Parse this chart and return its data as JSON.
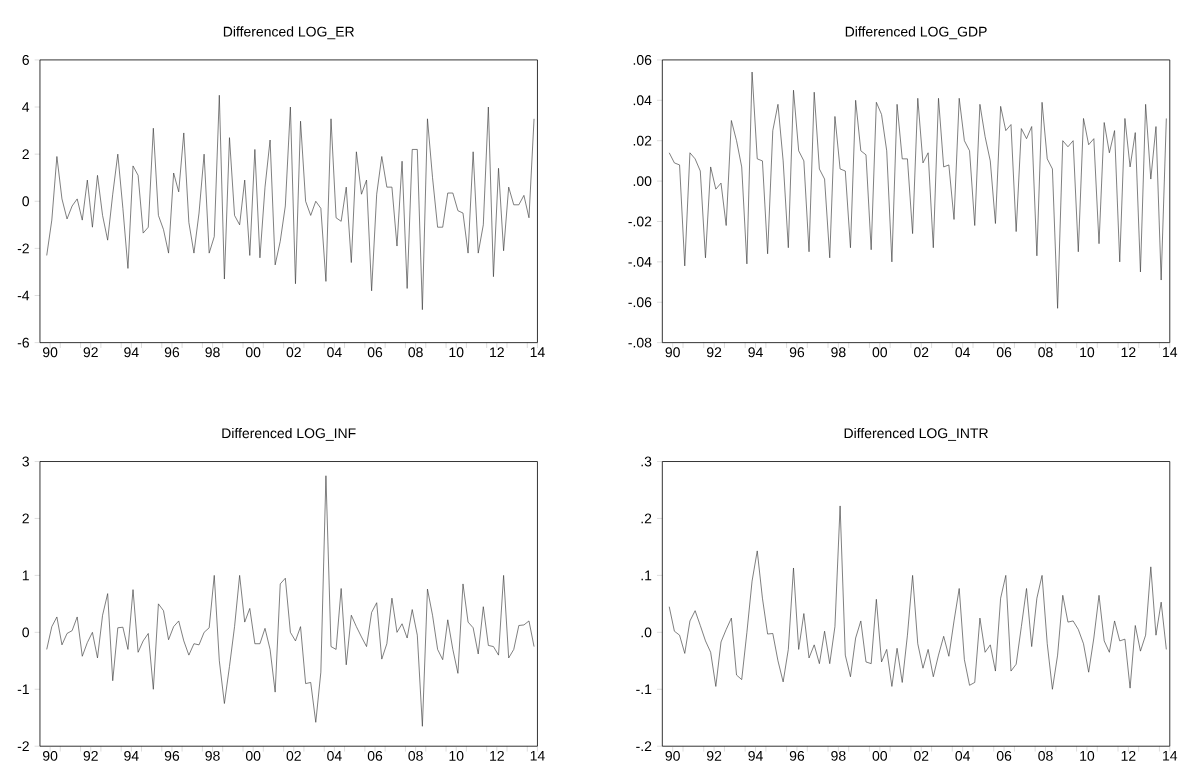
{
  "chart_data": [
    {
      "type": "line",
      "title": "Differenced LOG_ER",
      "color": "#404040",
      "xlim": [
        "1990-01",
        "2014-07"
      ],
      "ylim": [
        -6,
        6
      ],
      "yticks": [
        -6,
        -4,
        -2,
        0,
        2,
        4,
        6
      ],
      "xticks": [
        {
          "value": "1990-07",
          "label": "90"
        },
        {
          "value": "1992-07",
          "label": "92"
        },
        {
          "value": "1994-07",
          "label": "94"
        },
        {
          "value": "1996-07",
          "label": "96"
        },
        {
          "value": "1998-07",
          "label": "98"
        },
        {
          "value": "2000-07",
          "label": "00"
        },
        {
          "value": "2002-07",
          "label": "02"
        },
        {
          "value": "2004-07",
          "label": "04"
        },
        {
          "value": "2006-07",
          "label": "06"
        },
        {
          "value": "2008-07",
          "label": "08"
        },
        {
          "value": "2010-07",
          "label": "10"
        },
        {
          "value": "2012-07",
          "label": "12"
        },
        {
          "value": "2014-07",
          "label": "14"
        },
        {
          "value": "1991-01",
          "label": null
        },
        {
          "value": "1992-01",
          "label": null
        },
        {
          "value": "1993-01",
          "label": null
        },
        {
          "value": "1994-01",
          "label": null
        },
        {
          "value": "1995-01",
          "label": null
        },
        {
          "value": "1996-01",
          "label": null
        },
        {
          "value": "1997-01",
          "label": null
        },
        {
          "value": "1998-01",
          "label": null
        },
        {
          "value": "1999-01",
          "label": null
        },
        {
          "value": "2000-01",
          "label": null
        },
        {
          "value": "2001-01",
          "label": null
        },
        {
          "value": "2002-01",
          "label": null
        },
        {
          "value": "2003-01",
          "label": null
        },
        {
          "value": "2004-01",
          "label": null
        },
        {
          "value": "2005-01",
          "label": null
        },
        {
          "value": "2006-01",
          "label": null
        },
        {
          "value": "2007-01",
          "label": null
        },
        {
          "value": "2008-01",
          "label": null
        },
        {
          "value": "2009-01",
          "label": null
        },
        {
          "value": "2010-01",
          "label": null
        },
        {
          "value": "2011-01",
          "label": null
        },
        {
          "value": "2012-01",
          "label": null
        },
        {
          "value": "2013-01",
          "label": null
        },
        {
          "value": "2014-01",
          "label": null
        }
      ],
      "x": [
        "1990-05",
        "1990-08",
        "1990-11",
        "1991-02",
        "1991-05",
        "1991-08",
        "1991-11",
        "1992-02",
        "1992-05",
        "1992-08",
        "1992-11",
        "1993-02",
        "1993-05",
        "1993-08",
        "1993-11",
        "1994-02",
        "1994-05",
        "1994-08",
        "1994-11",
        "1995-02",
        "1995-05",
        "1995-08",
        "1995-11",
        "1996-02",
        "1996-05",
        "1996-08",
        "1996-11",
        "1997-02",
        "1997-05",
        "1997-08",
        "1997-11",
        "1998-02",
        "1998-05",
        "1998-08",
        "1998-11",
        "1999-02",
        "1999-05",
        "1999-08",
        "1999-11",
        "2000-02",
        "2000-05",
        "2000-08",
        "2000-11",
        "2001-02",
        "2001-05",
        "2001-08",
        "2001-11",
        "2002-02",
        "2002-05",
        "2002-08",
        "2002-11",
        "2003-02",
        "2003-05",
        "2003-08",
        "2003-11",
        "2004-02",
        "2004-05",
        "2004-08",
        "2004-11",
        "2005-02",
        "2005-05",
        "2005-08",
        "2005-11",
        "2006-02",
        "2006-05",
        "2006-08",
        "2006-11",
        "2007-02",
        "2007-05",
        "2007-08",
        "2007-11",
        "2008-02",
        "2008-05",
        "2008-08",
        "2008-11",
        "2009-02",
        "2009-05",
        "2009-08",
        "2009-11",
        "2010-02",
        "2010-05",
        "2010-08",
        "2010-11",
        "2011-02",
        "2011-05",
        "2011-08",
        "2011-11",
        "2012-02",
        "2012-05",
        "2012-08",
        "2012-11",
        "2013-02",
        "2013-05",
        "2013-08",
        "2013-11",
        "2014-02",
        "2014-05"
      ],
      "values": [
        -2.3,
        -0.8,
        1.9,
        0.1,
        -0.75,
        -0.2,
        0.1,
        -0.8,
        0.9,
        -1.1,
        1.1,
        -0.6,
        -1.65,
        0.3,
        2.0,
        -0.3,
        -2.85,
        1.5,
        1.1,
        -1.35,
        -1.1,
        3.1,
        -0.6,
        -1.2,
        -2.2,
        1.2,
        0.4,
        2.9,
        -0.9,
        -2.2,
        -0.5,
        2.0,
        -2.2,
        -1.5,
        4.5,
        -3.3,
        2.7,
        -0.6,
        -1.0,
        0.9,
        -2.3,
        2.2,
        -2.4,
        0.6,
        2.6,
        -2.7,
        -1.7,
        -0.2,
        4.0,
        -3.5,
        3.4,
        0.0,
        -0.6,
        0.0,
        -0.3,
        -3.4,
        3.5,
        -0.7,
        -0.85,
        0.6,
        -2.6,
        2.1,
        0.3,
        0.9,
        -3.8,
        0.3,
        1.9,
        0.6,
        0.6,
        -1.9,
        1.7,
        -3.7,
        2.2,
        2.2,
        -4.6,
        3.5,
        1.0,
        -1.1,
        -1.1,
        0.35,
        0.35,
        -0.4,
        -0.5,
        -2.2,
        2.1,
        -2.2,
        -1.0,
        4.0,
        -3.2,
        1.4,
        -2.1,
        0.6,
        -0.15,
        -0.15,
        0.25,
        -0.7,
        3.5
      ]
    },
    {
      "type": "line",
      "title": "Differenced LOG_GDP",
      "color": "#404040",
      "xlim": [
        "1990-01",
        "2014-07"
      ],
      "ylim": [
        -0.08,
        0.06
      ],
      "yticks": [
        {
          "value": -0.08,
          "label": "-.08"
        },
        {
          "value": -0.06,
          "label": "-.06"
        },
        {
          "value": -0.04,
          "label": "-.04"
        },
        {
          "value": -0.02,
          "label": "-.02"
        },
        {
          "value": 0,
          "label": ".00"
        },
        {
          "value": 0.02,
          "label": ".02"
        },
        {
          "value": 0.04,
          "label": ".04"
        },
        {
          "value": 0.06,
          "label": ".06"
        }
      ],
      "xticks": [
        {
          "value": "1990-07",
          "label": "90"
        },
        {
          "value": "1992-07",
          "label": "92"
        },
        {
          "value": "1994-07",
          "label": "94"
        },
        {
          "value": "1996-07",
          "label": "96"
        },
        {
          "value": "1998-07",
          "label": "98"
        },
        {
          "value": "2000-07",
          "label": "00"
        },
        {
          "value": "2002-07",
          "label": "02"
        },
        {
          "value": "2004-07",
          "label": "04"
        },
        {
          "value": "2006-07",
          "label": "06"
        },
        {
          "value": "2008-07",
          "label": "08"
        },
        {
          "value": "2010-07",
          "label": "10"
        },
        {
          "value": "2012-07",
          "label": "12"
        },
        {
          "value": "2014-07",
          "label": "14"
        },
        {
          "value": "1991-01",
          "label": null
        },
        {
          "value": "1992-01",
          "label": null
        },
        {
          "value": "1993-01",
          "label": null
        },
        {
          "value": "1994-01",
          "label": null
        },
        {
          "value": "1995-01",
          "label": null
        },
        {
          "value": "1996-01",
          "label": null
        },
        {
          "value": "1997-01",
          "label": null
        },
        {
          "value": "1998-01",
          "label": null
        },
        {
          "value": "1999-01",
          "label": null
        },
        {
          "value": "2000-01",
          "label": null
        },
        {
          "value": "2001-01",
          "label": null
        },
        {
          "value": "2002-01",
          "label": null
        },
        {
          "value": "2003-01",
          "label": null
        },
        {
          "value": "2004-01",
          "label": null
        },
        {
          "value": "2005-01",
          "label": null
        },
        {
          "value": "2006-01",
          "label": null
        },
        {
          "value": "2007-01",
          "label": null
        },
        {
          "value": "2008-01",
          "label": null
        },
        {
          "value": "2009-01",
          "label": null
        },
        {
          "value": "2010-01",
          "label": null
        },
        {
          "value": "2011-01",
          "label": null
        },
        {
          "value": "2012-01",
          "label": null
        },
        {
          "value": "2013-01",
          "label": null
        },
        {
          "value": "2014-01",
          "label": null
        }
      ],
      "x": [
        "1990-05",
        "1990-08",
        "1990-11",
        "1991-02",
        "1991-05",
        "1991-08",
        "1991-11",
        "1992-02",
        "1992-05",
        "1992-08",
        "1992-11",
        "1993-02",
        "1993-05",
        "1993-08",
        "1993-11",
        "1994-02",
        "1994-05",
        "1994-08",
        "1994-11",
        "1995-02",
        "1995-05",
        "1995-08",
        "1995-11",
        "1996-02",
        "1996-05",
        "1996-08",
        "1996-11",
        "1997-02",
        "1997-05",
        "1997-08",
        "1997-11",
        "1998-02",
        "1998-05",
        "1998-08",
        "1998-11",
        "1999-02",
        "1999-05",
        "1999-08",
        "1999-11",
        "2000-02",
        "2000-05",
        "2000-08",
        "2000-11",
        "2001-02",
        "2001-05",
        "2001-08",
        "2001-11",
        "2002-02",
        "2002-05",
        "2002-08",
        "2002-11",
        "2003-02",
        "2003-05",
        "2003-08",
        "2003-11",
        "2004-02",
        "2004-05",
        "2004-08",
        "2004-11",
        "2005-02",
        "2005-05",
        "2005-08",
        "2005-11",
        "2006-02",
        "2006-05",
        "2006-08",
        "2006-11",
        "2007-02",
        "2007-05",
        "2007-08",
        "2007-11",
        "2008-02",
        "2008-05",
        "2008-08",
        "2008-11",
        "2009-02",
        "2009-05",
        "2009-08",
        "2009-11",
        "2010-02",
        "2010-05",
        "2010-08",
        "2010-11",
        "2011-02",
        "2011-05",
        "2011-08",
        "2011-11",
        "2012-02",
        "2012-05",
        "2012-08",
        "2012-11",
        "2013-02",
        "2013-05",
        "2013-08",
        "2013-11",
        "2014-02",
        "2014-05"
      ],
      "values": [
        0.014,
        0.009,
        0.008,
        -0.042,
        0.014,
        0.011,
        0.005,
        -0.038,
        0.007,
        -0.004,
        -0.001,
        -0.022,
        0.03,
        0.02,
        0.007,
        -0.041,
        0.054,
        0.011,
        0.01,
        -0.036,
        0.025,
        0.038,
        0.01,
        -0.033,
        0.045,
        0.015,
        0.01,
        -0.035,
        0.044,
        0.006,
        0.001,
        -0.038,
        0.032,
        0.006,
        0.005,
        -0.033,
        0.04,
        0.015,
        0.013,
        -0.034,
        0.039,
        0.033,
        0.015,
        -0.04,
        0.038,
        0.011,
        0.011,
        -0.026,
        0.041,
        0.009,
        0.014,
        -0.033,
        0.041,
        0.007,
        0.008,
        -0.019,
        0.041,
        0.02,
        0.015,
        -0.022,
        0.038,
        0.022,
        0.01,
        -0.021,
        0.037,
        0.025,
        0.028,
        -0.025,
        0.026,
        0.021,
        0.027,
        -0.037,
        0.039,
        0.011,
        0.006,
        -0.063,
        0.02,
        0.017,
        0.02,
        -0.035,
        0.031,
        0.018,
        0.021,
        -0.031,
        0.029,
        0.014,
        0.025,
        -0.04,
        0.031,
        0.007,
        0.024,
        -0.045,
        0.038,
        0.001,
        0.027,
        -0.049,
        0.031
      ]
    },
    {
      "type": "line",
      "title": "Differenced LOG_INF",
      "color": "#404040",
      "xlim": [
        "1990-01",
        "2014-07"
      ],
      "ylim": [
        -2,
        3
      ],
      "yticks": [
        -2,
        -1,
        0,
        1,
        2,
        3
      ],
      "xticks": [
        {
          "value": "1990-07",
          "label": "90"
        },
        {
          "value": "1992-07",
          "label": "92"
        },
        {
          "value": "1994-07",
          "label": "94"
        },
        {
          "value": "1996-07",
          "label": "96"
        },
        {
          "value": "1998-07",
          "label": "98"
        },
        {
          "value": "2000-07",
          "label": "00"
        },
        {
          "value": "2002-07",
          "label": "02"
        },
        {
          "value": "2004-07",
          "label": "04"
        },
        {
          "value": "2006-07",
          "label": "06"
        },
        {
          "value": "2008-07",
          "label": "08"
        },
        {
          "value": "2010-07",
          "label": "10"
        },
        {
          "value": "2012-07",
          "label": "12"
        },
        {
          "value": "2014-07",
          "label": "14"
        },
        {
          "value": "1991-01",
          "label": null
        },
        {
          "value": "1992-01",
          "label": null
        },
        {
          "value": "1993-01",
          "label": null
        },
        {
          "value": "1994-01",
          "label": null
        },
        {
          "value": "1995-01",
          "label": null
        },
        {
          "value": "1996-01",
          "label": null
        },
        {
          "value": "1997-01",
          "label": null
        },
        {
          "value": "1998-01",
          "label": null
        },
        {
          "value": "1999-01",
          "label": null
        },
        {
          "value": "2000-01",
          "label": null
        },
        {
          "value": "2001-01",
          "label": null
        },
        {
          "value": "2002-01",
          "label": null
        },
        {
          "value": "2003-01",
          "label": null
        },
        {
          "value": "2004-01",
          "label": null
        },
        {
          "value": "2005-01",
          "label": null
        },
        {
          "value": "2006-01",
          "label": null
        },
        {
          "value": "2007-01",
          "label": null
        },
        {
          "value": "2008-01",
          "label": null
        },
        {
          "value": "2009-01",
          "label": null
        },
        {
          "value": "2010-01",
          "label": null
        },
        {
          "value": "2011-01",
          "label": null
        },
        {
          "value": "2012-01",
          "label": null
        },
        {
          "value": "2013-01",
          "label": null
        },
        {
          "value": "2014-01",
          "label": null
        }
      ],
      "x": [
        "1990-05",
        "1990-08",
        "1990-11",
        "1991-02",
        "1991-05",
        "1991-08",
        "1991-11",
        "1992-02",
        "1992-05",
        "1992-08",
        "1992-11",
        "1993-02",
        "1993-05",
        "1993-08",
        "1993-11",
        "1994-02",
        "1994-05",
        "1994-08",
        "1994-11",
        "1995-02",
        "1995-05",
        "1995-08",
        "1995-11",
        "1996-02",
        "1996-05",
        "1996-08",
        "1996-11",
        "1997-02",
        "1997-05",
        "1997-08",
        "1997-11",
        "1998-02",
        "1998-05",
        "1998-08",
        "1998-11",
        "1999-02",
        "1999-05",
        "1999-08",
        "1999-11",
        "2000-02",
        "2000-05",
        "2000-08",
        "2000-11",
        "2001-02",
        "2001-05",
        "2001-08",
        "2001-11",
        "2002-02",
        "2002-05",
        "2002-08",
        "2002-11",
        "2003-02",
        "2003-05",
        "2003-08",
        "2003-11",
        "2004-02",
        "2004-05",
        "2004-08",
        "2004-11",
        "2005-02",
        "2005-05",
        "2005-08",
        "2005-11",
        "2006-02",
        "2006-05",
        "2006-08",
        "2006-11",
        "2007-02",
        "2007-05",
        "2007-08",
        "2007-11",
        "2008-02",
        "2008-05",
        "2008-08",
        "2008-11",
        "2009-02",
        "2009-05",
        "2009-08",
        "2009-11",
        "2010-02",
        "2010-05",
        "2010-08",
        "2010-11",
        "2011-02",
        "2011-05",
        "2011-08",
        "2011-11",
        "2012-02",
        "2012-05",
        "2012-08",
        "2012-11",
        "2013-02",
        "2013-05",
        "2013-08",
        "2013-11",
        "2014-02",
        "2014-05"
      ],
      "values": [
        -0.3,
        0.1,
        0.27,
        -0.22,
        -0.02,
        0.03,
        0.27,
        -0.42,
        -0.18,
        0.0,
        -0.45,
        0.3,
        0.68,
        -0.85,
        0.08,
        0.09,
        -0.3,
        0.75,
        -0.35,
        -0.15,
        -0.02,
        -1.0,
        0.5,
        0.38,
        -0.13,
        0.1,
        0.2,
        -0.15,
        -0.4,
        -0.2,
        -0.22,
        0.0,
        0.08,
        1.0,
        -0.5,
        -1.25,
        -0.6,
        0.1,
        1.0,
        0.18,
        0.42,
        -0.2,
        -0.2,
        0.07,
        -0.3,
        -1.05,
        0.85,
        0.95,
        0.0,
        -0.15,
        0.1,
        -0.9,
        -0.88,
        -1.58,
        -0.7,
        2.75,
        -0.25,
        -0.3,
        0.77,
        -0.57,
        0.3,
        0.1,
        -0.08,
        -0.25,
        0.35,
        0.52,
        -0.47,
        -0.2,
        0.6,
        0.0,
        0.15,
        -0.1,
        0.4,
        -0.05,
        -1.65,
        0.76,
        0.3,
        -0.3,
        -0.48,
        0.22,
        -0.3,
        -0.72,
        0.85,
        0.18,
        0.08,
        -0.38,
        0.45,
        -0.23,
        -0.25,
        -0.4,
        1.0,
        -0.45,
        -0.3,
        0.12,
        0.13,
        0.2,
        -0.25
      ]
    },
    {
      "type": "line",
      "title": "Differenced LOG_INTR",
      "color": "#404040",
      "xlim": [
        "1990-01",
        "2014-07"
      ],
      "ylim": [
        -0.2,
        0.3
      ],
      "yticks": [
        {
          "value": -0.2,
          "label": "-.2"
        },
        {
          "value": -0.1,
          "label": "-.1"
        },
        {
          "value": 0,
          "label": ".0"
        },
        {
          "value": 0.1,
          "label": ".1"
        },
        {
          "value": 0.2,
          "label": ".2"
        },
        {
          "value": 0.3,
          "label": ".3"
        }
      ],
      "xticks": [
        {
          "value": "1990-07",
          "label": "90"
        },
        {
          "value": "1992-07",
          "label": "92"
        },
        {
          "value": "1994-07",
          "label": "94"
        },
        {
          "value": "1996-07",
          "label": "96"
        },
        {
          "value": "1998-07",
          "label": "98"
        },
        {
          "value": "2000-07",
          "label": "00"
        },
        {
          "value": "2002-07",
          "label": "02"
        },
        {
          "value": "2004-07",
          "label": "04"
        },
        {
          "value": "2006-07",
          "label": "06"
        },
        {
          "value": "2008-07",
          "label": "08"
        },
        {
          "value": "2010-07",
          "label": "10"
        },
        {
          "value": "2012-07",
          "label": "12"
        },
        {
          "value": "2014-07",
          "label": "14"
        },
        {
          "value": "1991-01",
          "label": null
        },
        {
          "value": "1992-01",
          "label": null
        },
        {
          "value": "1993-01",
          "label": null
        },
        {
          "value": "1994-01",
          "label": null
        },
        {
          "value": "1995-01",
          "label": null
        },
        {
          "value": "1996-01",
          "label": null
        },
        {
          "value": "1997-01",
          "label": null
        },
        {
          "value": "1998-01",
          "label": null
        },
        {
          "value": "1999-01",
          "label": null
        },
        {
          "value": "2000-01",
          "label": null
        },
        {
          "value": "2001-01",
          "label": null
        },
        {
          "value": "2002-01",
          "label": null
        },
        {
          "value": "2003-01",
          "label": null
        },
        {
          "value": "2004-01",
          "label": null
        },
        {
          "value": "2005-01",
          "label": null
        },
        {
          "value": "2006-01",
          "label": null
        },
        {
          "value": "2007-01",
          "label": null
        },
        {
          "value": "2008-01",
          "label": null
        },
        {
          "value": "2009-01",
          "label": null
        },
        {
          "value": "2010-01",
          "label": null
        },
        {
          "value": "2011-01",
          "label": null
        },
        {
          "value": "2012-01",
          "label": null
        },
        {
          "value": "2013-01",
          "label": null
        },
        {
          "value": "2014-01",
          "label": null
        }
      ],
      "x": [
        "1990-05",
        "1990-08",
        "1990-11",
        "1991-02",
        "1991-05",
        "1991-08",
        "1991-11",
        "1992-02",
        "1992-05",
        "1992-08",
        "1992-11",
        "1993-02",
        "1993-05",
        "1993-08",
        "1993-11",
        "1994-02",
        "1994-05",
        "1994-08",
        "1994-11",
        "1995-02",
        "1995-05",
        "1995-08",
        "1995-11",
        "1996-02",
        "1996-05",
        "1996-08",
        "1996-11",
        "1997-02",
        "1997-05",
        "1997-08",
        "1997-11",
        "1998-02",
        "1998-05",
        "1998-08",
        "1998-11",
        "1999-02",
        "1999-05",
        "1999-08",
        "1999-11",
        "2000-02",
        "2000-05",
        "2000-08",
        "2000-11",
        "2001-02",
        "2001-05",
        "2001-08",
        "2001-11",
        "2002-02",
        "2002-05",
        "2002-08",
        "2002-11",
        "2003-02",
        "2003-05",
        "2003-08",
        "2003-11",
        "2004-02",
        "2004-05",
        "2004-08",
        "2004-11",
        "2005-02",
        "2005-05",
        "2005-08",
        "2005-11",
        "2006-02",
        "2006-05",
        "2006-08",
        "2006-11",
        "2007-02",
        "2007-05",
        "2007-08",
        "2007-11",
        "2008-02",
        "2008-05",
        "2008-08",
        "2008-11",
        "2009-02",
        "2009-05",
        "2009-08",
        "2009-11",
        "2010-02",
        "2010-05",
        "2010-08",
        "2010-11",
        "2011-02",
        "2011-05",
        "2011-08",
        "2011-11",
        "2012-02",
        "2012-05",
        "2012-08",
        "2012-11",
        "2013-02",
        "2013-05",
        "2013-08",
        "2013-11",
        "2014-02",
        "2014-05"
      ],
      "values": [
        0.045,
        0.002,
        -0.005,
        -0.037,
        0.02,
        0.038,
        0.012,
        -0.015,
        -0.035,
        -0.095,
        -0.017,
        0.005,
        0.025,
        -0.075,
        -0.083,
        0.0,
        0.09,
        0.143,
        0.06,
        -0.003,
        -0.002,
        -0.05,
        -0.087,
        -0.03,
        0.113,
        -0.03,
        0.033,
        -0.045,
        -0.022,
        -0.055,
        0.002,
        -0.055,
        0.01,
        0.222,
        -0.04,
        -0.078,
        -0.01,
        0.02,
        -0.052,
        -0.055,
        0.058,
        -0.052,
        -0.03,
        -0.095,
        -0.028,
        -0.088,
        -0.005,
        0.1,
        -0.02,
        -0.063,
        -0.03,
        -0.078,
        -0.04,
        -0.007,
        -0.042,
        0.02,
        0.077,
        -0.048,
        -0.093,
        -0.088,
        0.025,
        -0.035,
        -0.022,
        -0.068,
        0.06,
        0.1,
        -0.068,
        -0.056,
        0.01,
        0.077,
        -0.025,
        0.06,
        0.1,
        -0.02,
        -0.1,
        -0.04,
        0.065,
        0.018,
        0.02,
        0.005,
        -0.02,
        -0.07,
        -0.01,
        0.065,
        -0.015,
        -0.035,
        0.02,
        -0.015,
        -0.012,
        -0.098,
        0.012,
        -0.033,
        -0.005,
        0.115,
        -0.005,
        0.053,
        -0.03
      ]
    }
  ]
}
